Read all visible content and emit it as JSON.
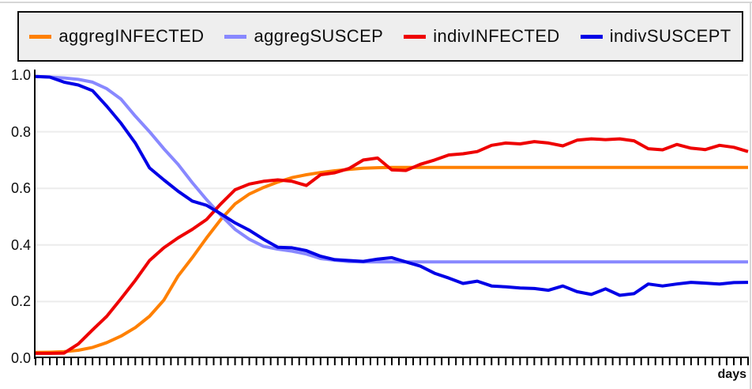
{
  "widget": {
    "background": "#FFFFFF",
    "frame_border_color": "#D6D6D6",
    "plot_background": "#FFFFFF"
  },
  "legend": {
    "background": "#EEEEEE",
    "border_color": "#0D0D0D",
    "entries": [
      {
        "label": "aggregINFECTED",
        "color": "#FF8000"
      },
      {
        "label": "aggregSUSCEP",
        "color": "#8888FF"
      },
      {
        "label": "indivINFECTED",
        "color": "#EE0000"
      },
      {
        "label": "indivSUSCEPT",
        "color": "#0000E6"
      }
    ]
  },
  "axes": {
    "x_axis_label": "days",
    "y_tick_labels": [
      "1.0",
      "0.8",
      "0.6",
      "0.4",
      "0.2",
      "0.0"
    ],
    "axis_color": "#000000",
    "grid_color": "#ECECEC",
    "tick_color": "#000000"
  },
  "chart_data": {
    "type": "line",
    "title": "",
    "xlabel": "days",
    "ylabel": "",
    "xlim": [
      0,
      100
    ],
    "ylim": [
      0.0,
      1.0
    ],
    "y_ticks": [
      0.0,
      0.2,
      0.4,
      0.6,
      0.8,
      1.0
    ],
    "x_minor_tick_every": 1,
    "grid": "horizontal",
    "legend_position": "top",
    "x": [
      0,
      2,
      4,
      6,
      8,
      10,
      12,
      14,
      16,
      18,
      20,
      22,
      24,
      26,
      28,
      30,
      32,
      34,
      36,
      38,
      40,
      42,
      44,
      46,
      48,
      50,
      52,
      54,
      56,
      58,
      60,
      62,
      64,
      66,
      68,
      70,
      72,
      74,
      76,
      78,
      80,
      82,
      84,
      86,
      88,
      90,
      92,
      94,
      96,
      98,
      100
    ],
    "series": [
      {
        "name": "aggregINFECTED",
        "color": "#FF8000",
        "values": [
          0.02,
          0.021,
          0.023,
          0.028,
          0.038,
          0.055,
          0.078,
          0.108,
          0.148,
          0.205,
          0.29,
          0.355,
          0.425,
          0.49,
          0.545,
          0.58,
          0.603,
          0.622,
          0.638,
          0.648,
          0.656,
          0.662,
          0.667,
          0.671,
          0.673,
          0.674,
          0.674,
          0.674,
          0.674,
          0.674,
          0.674,
          0.674,
          0.674,
          0.674,
          0.674,
          0.674,
          0.674,
          0.674,
          0.674,
          0.674,
          0.674,
          0.674,
          0.674,
          0.674,
          0.674,
          0.674,
          0.674,
          0.674,
          0.674,
          0.674,
          0.674
        ]
      },
      {
        "name": "aggregSUSCEP",
        "color": "#8888FF",
        "values": [
          0.995,
          0.993,
          0.99,
          0.985,
          0.975,
          0.952,
          0.915,
          0.855,
          0.8,
          0.74,
          0.685,
          0.62,
          0.56,
          0.505,
          0.455,
          0.42,
          0.395,
          0.385,
          0.378,
          0.368,
          0.352,
          0.346,
          0.341,
          0.34,
          0.34,
          0.34,
          0.34,
          0.34,
          0.34,
          0.34,
          0.34,
          0.34,
          0.34,
          0.34,
          0.34,
          0.34,
          0.34,
          0.34,
          0.34,
          0.34,
          0.34,
          0.34,
          0.34,
          0.34,
          0.34,
          0.34,
          0.34,
          0.34,
          0.34,
          0.34,
          0.34
        ]
      },
      {
        "name": "indivINFECTED",
        "color": "#EE0000",
        "values": [
          0.017,
          0.017,
          0.018,
          0.05,
          0.1,
          0.148,
          0.21,
          0.275,
          0.345,
          0.39,
          0.425,
          0.455,
          0.49,
          0.545,
          0.595,
          0.615,
          0.625,
          0.63,
          0.625,
          0.61,
          0.648,
          0.655,
          0.67,
          0.7,
          0.707,
          0.665,
          0.663,
          0.685,
          0.7,
          0.718,
          0.722,
          0.73,
          0.752,
          0.76,
          0.757,
          0.765,
          0.76,
          0.75,
          0.77,
          0.775,
          0.772,
          0.775,
          0.768,
          0.74,
          0.736,
          0.755,
          0.742,
          0.737,
          0.752,
          0.745,
          0.73
        ]
      },
      {
        "name": "indivSUSCEPT",
        "color": "#0000E6",
        "values": [
          0.995,
          0.993,
          0.975,
          0.965,
          0.945,
          0.89,
          0.83,
          0.76,
          0.672,
          0.63,
          0.59,
          0.555,
          0.54,
          0.51,
          0.478,
          0.452,
          0.42,
          0.392,
          0.39,
          0.38,
          0.36,
          0.348,
          0.345,
          0.342,
          0.35,
          0.355,
          0.34,
          0.325,
          0.3,
          0.283,
          0.264,
          0.272,
          0.255,
          0.252,
          0.248,
          0.246,
          0.24,
          0.255,
          0.235,
          0.225,
          0.245,
          0.222,
          0.228,
          0.262,
          0.255,
          0.262,
          0.268,
          0.265,
          0.262,
          0.267,
          0.268
        ]
      }
    ]
  }
}
